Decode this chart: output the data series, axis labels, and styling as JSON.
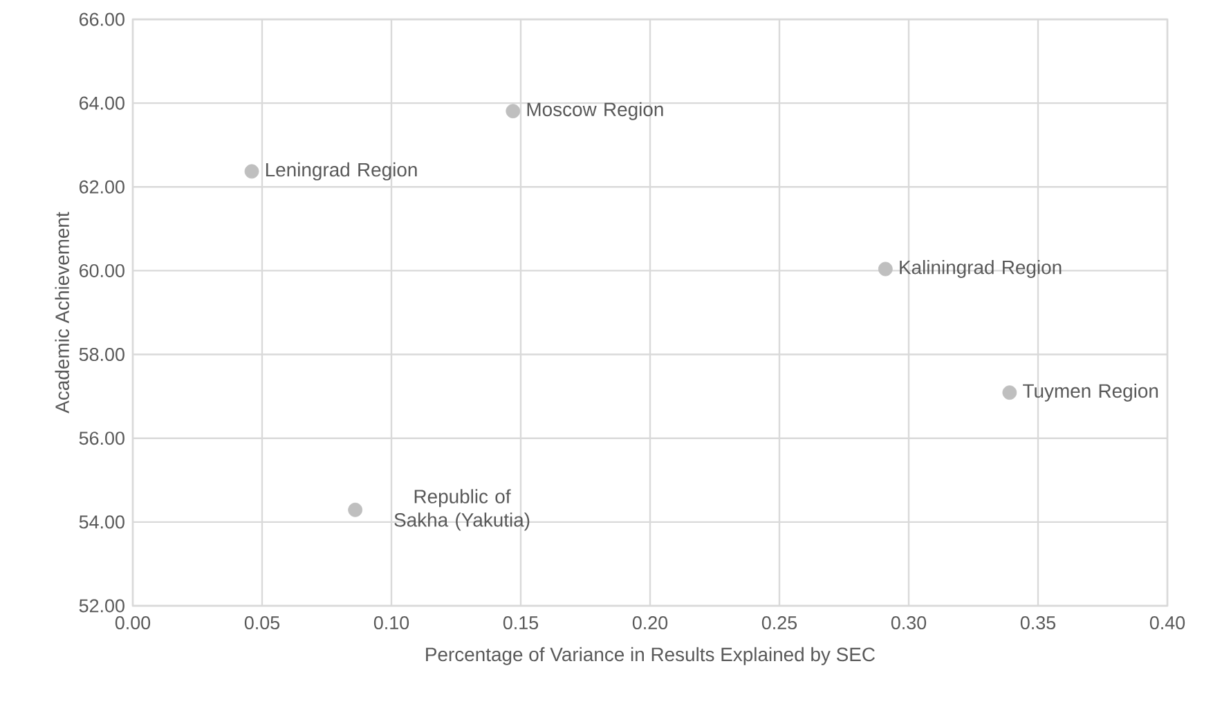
{
  "chart_data": {
    "type": "scatter",
    "xlabel": "Percentage of Variance in Results Explained by SEC",
    "ylabel": "Academic Achievement",
    "x": [
      0.046,
      0.147,
      0.086,
      0.291,
      0.339
    ],
    "values": [
      62.37,
      63.81,
      54.29,
      60.04,
      57.09
    ],
    "color": "#bfbfbf",
    "marker": "circle",
    "xlim": [
      0,
      0.4
    ],
    "ylim": [
      52,
      66
    ],
    "xticks": [
      {
        "value": 0,
        "label": "0.00"
      },
      {
        "value": 0.05,
        "label": "0.05"
      },
      {
        "value": 0.1,
        "label": "0.10"
      },
      {
        "value": 0.15,
        "label": "0.15"
      },
      {
        "value": 0.2,
        "label": "0.20"
      },
      {
        "value": 0.25,
        "label": "0.25"
      },
      {
        "value": 0.3,
        "label": "0.30"
      },
      {
        "value": 0.35,
        "label": "0.35"
      },
      {
        "value": 0.4,
        "label": "0.40"
      }
    ],
    "yticks": [
      {
        "value": 52,
        "label": "52.00"
      },
      {
        "value": 54,
        "label": "54.00"
      },
      {
        "value": 56,
        "label": "56.00"
      },
      {
        "value": 58,
        "label": "58.00"
      },
      {
        "value": 60,
        "label": "60.00"
      },
      {
        "value": 62,
        "label": "62.00"
      },
      {
        "value": 64,
        "label": "64.00"
      },
      {
        "value": 66,
        "label": "66.00"
      }
    ],
    "grid": true,
    "annotations": [
      {
        "text": "Leningrad Region",
        "x": 0.046,
        "y": 62.37
      },
      {
        "text": "Moscow Region",
        "x": 0.147,
        "y": 63.81
      },
      {
        "text": "Republic of Sakha (Yakutia)",
        "x": 0.086,
        "y": 54.29
      },
      {
        "text": "Kaliningrad Region",
        "x": 0.291,
        "y": 60.04
      },
      {
        "text": "Tuymen Region",
        "x": 0.339,
        "y": 57.09
      }
    ]
  }
}
